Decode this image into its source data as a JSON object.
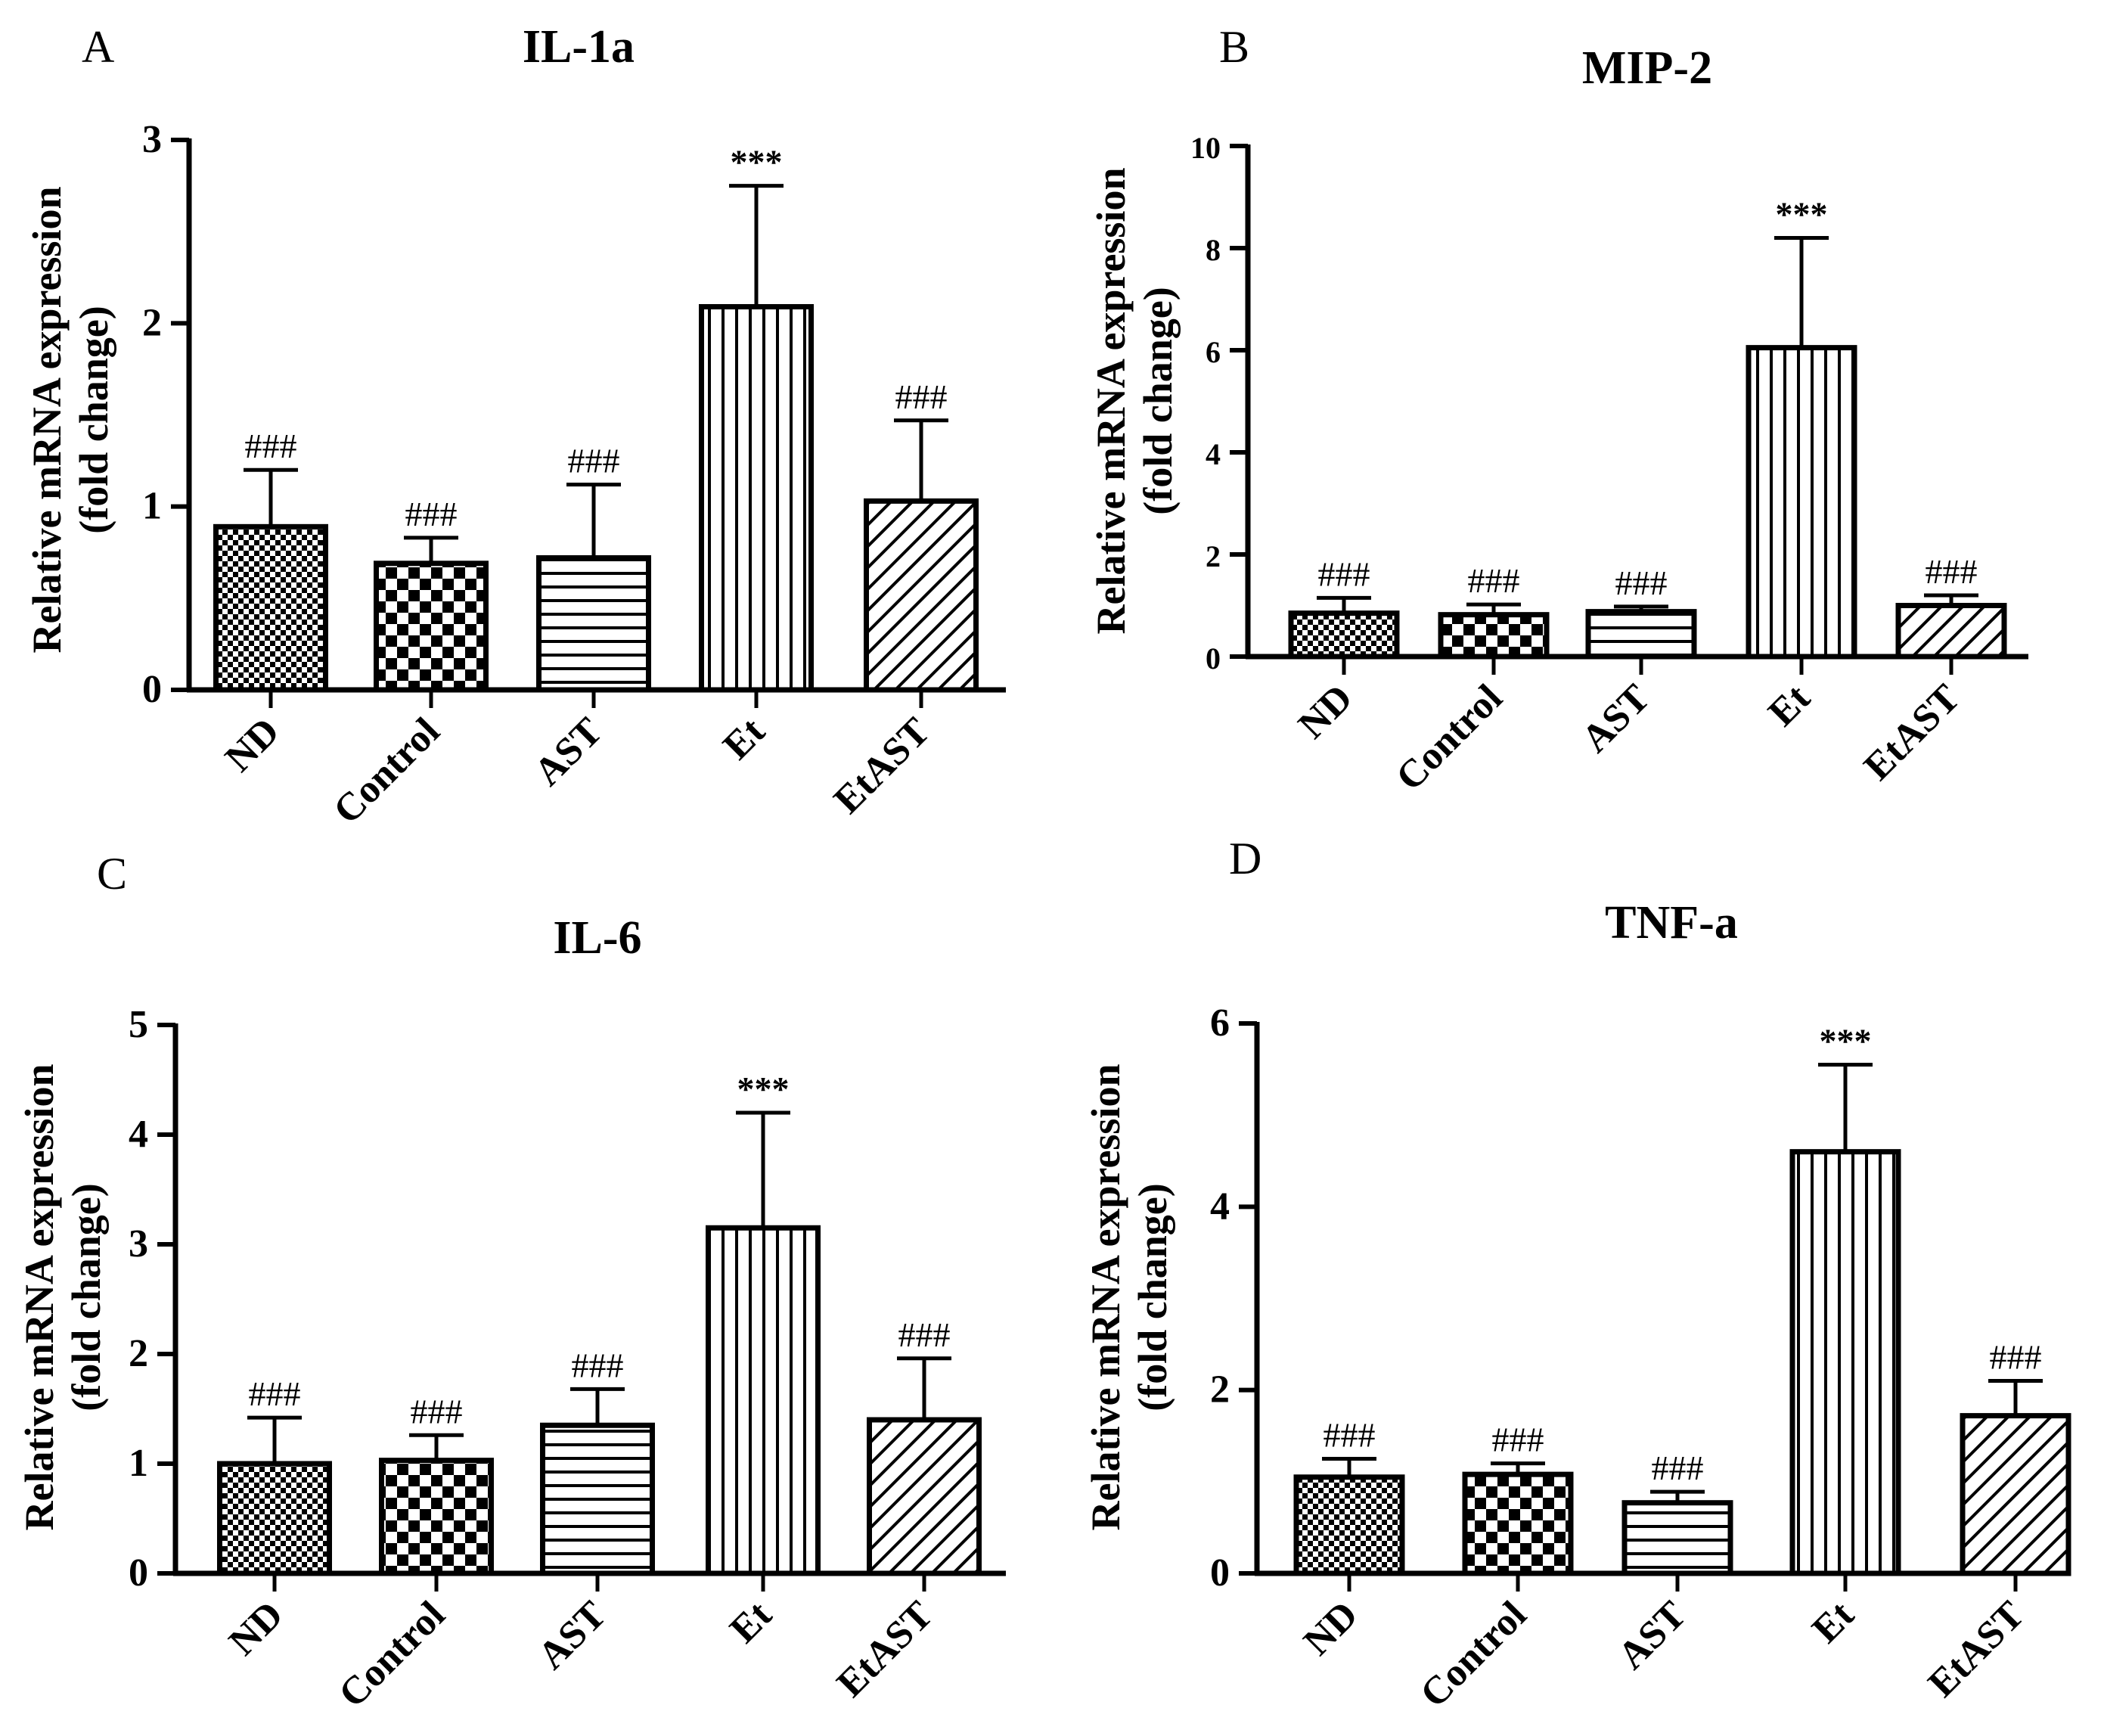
{
  "figure": {
    "categories": [
      "ND",
      "Control",
      "AST",
      "Et",
      "EtAST"
    ],
    "ylabel_line1": "Relative mRNA expression",
    "ylabel_line2": "(fold change)",
    "patterns": [
      "fine-checker",
      "checker",
      "horizontal",
      "vertical",
      "diagonal"
    ]
  },
  "chart_data": [
    {
      "panel": "A",
      "type": "bar",
      "title": "IL-1a",
      "ylabel": "Relative mRNA expression (fold change)",
      "categories": [
        "ND",
        "Control",
        "AST",
        "Et",
        "EtAST"
      ],
      "values": [
        0.89,
        0.69,
        0.72,
        2.09,
        1.03
      ],
      "errors": [
        0.31,
        0.14,
        0.4,
        0.66,
        0.44
      ],
      "annotations": [
        "###",
        "###",
        "###",
        "***",
        "###"
      ],
      "ylim": [
        0,
        3
      ],
      "yticks": [
        0,
        1,
        2,
        3
      ]
    },
    {
      "panel": "B",
      "type": "bar",
      "title": "MIP-2",
      "ylabel": "Relative mRNA expression (fold change)",
      "categories": [
        "ND",
        "Control",
        "AST",
        "Et",
        "EtAST"
      ],
      "values": [
        0.85,
        0.82,
        0.88,
        6.05,
        1.0
      ],
      "errors": [
        0.3,
        0.2,
        0.1,
        2.15,
        0.2
      ],
      "annotations": [
        "###",
        "###",
        "###",
        "***",
        "###"
      ],
      "ylim": [
        0,
        10
      ],
      "yticks": [
        0,
        2,
        4,
        6,
        8,
        10
      ]
    },
    {
      "panel": "C",
      "type": "bar",
      "title": "IL-6",
      "ylabel": "Relative mRNA expression (fold change)",
      "categories": [
        "ND",
        "Control",
        "AST",
        "Et",
        "EtAST"
      ],
      "values": [
        1.0,
        1.03,
        1.35,
        3.15,
        1.4
      ],
      "errors": [
        0.42,
        0.23,
        0.33,
        1.05,
        0.56
      ],
      "annotations": [
        "###",
        "###",
        "###",
        "***",
        "###"
      ],
      "ylim": [
        0,
        5
      ],
      "yticks": [
        0,
        1,
        2,
        3,
        4,
        5
      ]
    },
    {
      "panel": "D",
      "type": "bar",
      "title": "TNF-a",
      "ylabel": "Relative mRNA expression (fold change)",
      "categories": [
        "ND",
        "Control",
        "AST",
        "Et",
        "EtAST"
      ],
      "values": [
        1.05,
        1.08,
        0.77,
        4.6,
        1.72
      ],
      "errors": [
        0.2,
        0.12,
        0.12,
        0.95,
        0.38
      ],
      "annotations": [
        "###",
        "###",
        "###",
        "***",
        "###"
      ],
      "ylim": [
        0,
        6
      ],
      "yticks": [
        0,
        2,
        4,
        6
      ]
    }
  ]
}
